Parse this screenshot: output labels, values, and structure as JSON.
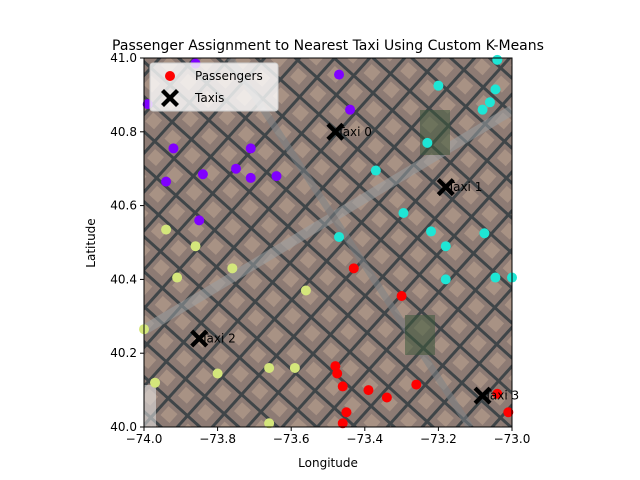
{
  "chart_data": {
    "type": "scatter",
    "title": "Passenger Assignment to Nearest Taxi Using Custom K-Means",
    "xlabel": "Longitude",
    "ylabel": "Latitude",
    "xlim": [
      -74.0,
      -73.0
    ],
    "ylim": [
      40.0,
      41.0
    ],
    "xticks": [
      "−74.0",
      "−73.8",
      "−73.6",
      "−73.4",
      "−73.2",
      "−73.0"
    ],
    "xtick_values": [
      -74.0,
      -73.8,
      -73.6,
      -73.4,
      -73.2,
      -73.0
    ],
    "yticks": [
      "40.0",
      "40.2",
      "40.4",
      "40.6",
      "40.8",
      "41.0"
    ],
    "ytick_values": [
      40.0,
      40.2,
      40.4,
      40.6,
      40.8,
      41.0
    ],
    "legend": {
      "position": "upper-left",
      "entries": [
        {
          "label": "Passengers",
          "marker": "dot",
          "color": "#ff0000"
        },
        {
          "label": "Taxis",
          "marker": "x",
          "color": "#000000"
        }
      ]
    },
    "background": "aerial-city-map",
    "cluster_colors": [
      "#8000ff",
      "#1ee6d5",
      "#d4e67b",
      "#ff0000"
    ],
    "taxis": [
      {
        "label": "Taxi 0",
        "x": -73.48,
        "y": 40.8
      },
      {
        "label": "Taxi 1",
        "x": -73.18,
        "y": 40.65
      },
      {
        "label": "Taxi 2",
        "x": -73.85,
        "y": 40.24
      },
      {
        "label": "Taxi 3",
        "x": -73.08,
        "y": 40.085
      }
    ],
    "series": [
      {
        "cluster": 0,
        "points": [
          [
            -73.47,
            40.955
          ],
          [
            -73.86,
            40.985
          ],
          [
            -73.99,
            40.875
          ],
          [
            -73.44,
            40.86
          ],
          [
            -73.92,
            40.755
          ],
          [
            -73.75,
            40.7
          ],
          [
            -73.71,
            40.755
          ],
          [
            -73.84,
            40.685
          ],
          [
            -73.71,
            40.675
          ],
          [
            -73.64,
            40.68
          ],
          [
            -73.94,
            40.665
          ],
          [
            -73.85,
            40.56
          ]
        ]
      },
      {
        "cluster": 1,
        "points": [
          [
            -73.04,
            40.995
          ],
          [
            -73.2,
            40.925
          ],
          [
            -73.045,
            40.915
          ],
          [
            -73.06,
            40.88
          ],
          [
            -73.08,
            40.86
          ],
          [
            -73.23,
            40.77
          ],
          [
            -73.37,
            40.695
          ],
          [
            -73.295,
            40.58
          ],
          [
            -73.22,
            40.53
          ],
          [
            -73.47,
            40.515
          ],
          [
            -73.075,
            40.525
          ],
          [
            -73.18,
            40.49
          ],
          [
            -73.045,
            40.405
          ],
          [
            -73.0,
            40.405
          ],
          [
            -73.18,
            40.4
          ]
        ]
      },
      {
        "cluster": 2,
        "points": [
          [
            -73.94,
            40.535
          ],
          [
            -73.86,
            40.49
          ],
          [
            -73.91,
            40.405
          ],
          [
            -73.76,
            40.43
          ],
          [
            -73.56,
            40.37
          ],
          [
            -74.0,
            40.265
          ],
          [
            -73.97,
            40.12
          ],
          [
            -73.8,
            40.145
          ],
          [
            -73.66,
            40.16
          ],
          [
            -73.59,
            40.16
          ],
          [
            -73.66,
            40.01
          ]
        ]
      },
      {
        "cluster": 3,
        "points": [
          [
            -73.43,
            40.43
          ],
          [
            -73.3,
            40.355
          ],
          [
            -73.48,
            40.165
          ],
          [
            -73.475,
            40.145
          ],
          [
            -73.46,
            40.11
          ],
          [
            -73.39,
            40.1
          ],
          [
            -73.34,
            40.08
          ],
          [
            -73.26,
            40.115
          ],
          [
            -73.45,
            40.04
          ],
          [
            -73.46,
            40.01
          ],
          [
            -73.04,
            40.09
          ],
          [
            -73.01,
            40.04
          ]
        ]
      }
    ]
  }
}
